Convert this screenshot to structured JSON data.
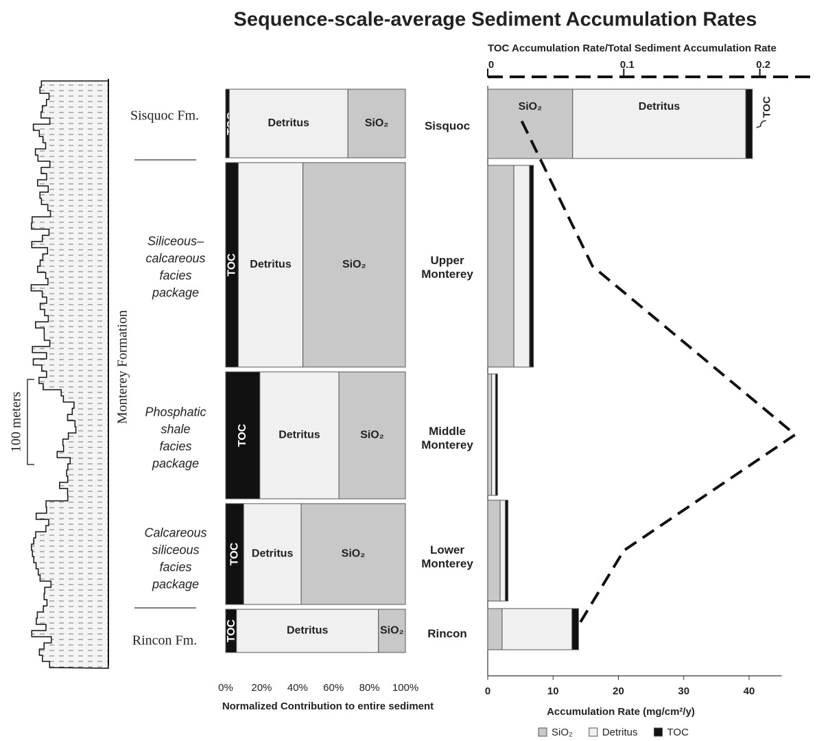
{
  "title": "Sequence-scale-average Sediment Accumulation Rates",
  "stratigraphy": {
    "scale_label": "100 meters",
    "formation_label": "Monterey Formation",
    "units": [
      [
        "Sisquoc Fm."
      ],
      [
        "Siliceous–",
        "calcareous",
        "facies",
        "package"
      ],
      [
        "Phosphatic",
        "shale",
        "facies",
        "package"
      ],
      [
        "Calcareous",
        "siliceous",
        "facies",
        "package"
      ],
      [
        "Rincon Fm."
      ]
    ]
  },
  "chart_data": [
    {
      "type": "stacked-bar",
      "orientation": "horizontal",
      "categories": [
        "Sisquoc",
        "Upper Monterey",
        "Middle Monterey",
        "Lower Monterey",
        "Rincon"
      ],
      "series": [
        {
          "name": "TOC",
          "color": "#111111",
          "values": [
            2,
            7,
            19,
            10,
            6
          ]
        },
        {
          "name": "Detritus",
          "color": "#f0f0f0",
          "values": [
            66,
            36,
            44,
            32,
            79
          ]
        },
        {
          "name": "SiO₂",
          "color": "#c8c8c8",
          "values": [
            32,
            57,
            37,
            58,
            15
          ]
        }
      ],
      "xlim": [
        0,
        100
      ],
      "xticks": [
        {
          "value": 0,
          "label": "0%"
        },
        {
          "value": 20,
          "label": "20%"
        },
        {
          "value": 40,
          "label": "40%"
        },
        {
          "value": 60,
          "label": "60%"
        },
        {
          "value": 80,
          "label": "80%"
        },
        {
          "value": 100,
          "label": "100%"
        }
      ],
      "xlabel": "Normalized Contribution to entire sediment"
    },
    {
      "type": "stacked-bar",
      "orientation": "horizontal",
      "series": [
        {
          "name": "SiO₂",
          "color": "#c8c8c8",
          "values": [
            13,
            4,
            0.6,
            1.9,
            2.2
          ]
        },
        {
          "name": "Detritus",
          "color": "#f0f0f0",
          "values": [
            26.5,
            2.4,
            0.6,
            0.8,
            10.7
          ]
        },
        {
          "name": "TOC",
          "color": "#111111",
          "values": [
            1,
            0.6,
            0.3,
            0.4,
            1
          ]
        },
        {
          "type": "line",
          "axis": "x2",
          "color": "#111111",
          "dashed": true,
          "values": [
            0.025,
            0.077,
            0.226,
            0.1,
            0.065
          ]
        }
      ],
      "xlim": [
        0,
        45
      ],
      "xticks": [
        0,
        10,
        20,
        30,
        40
      ],
      "xlabel": "Accumulation Rate (mg/cm²/y)",
      "x2lim": [
        0,
        0.24
      ],
      "x2ticks": [
        0,
        0.1,
        0.2
      ],
      "x2label": "TOC Accumulation Rate/Total Sediment Accumulation Rate",
      "legend": "bottom"
    }
  ]
}
